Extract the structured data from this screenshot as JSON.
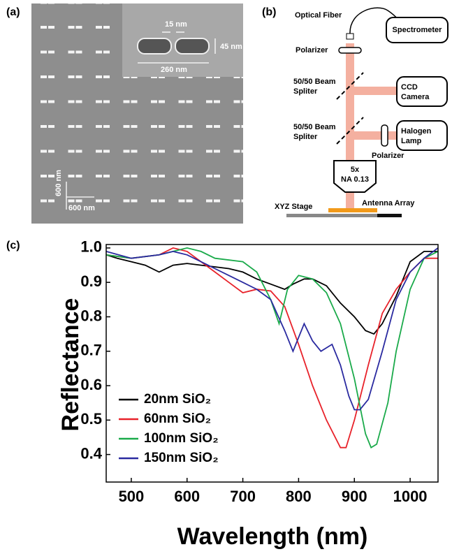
{
  "panel_a": {
    "label": "(a)",
    "gap": "15 nm",
    "width": "45 nm",
    "length": "260 nm",
    "pitch_y": "600 nm",
    "pitch_x": "600 nm"
  },
  "panel_b": {
    "label": "(b)",
    "optical_fiber": "Optical Fiber",
    "spectrometer": "Spectrometer",
    "polarizer_top": "Polarizer",
    "splitter_1": [
      "50/50 Beam",
      "Spliter"
    ],
    "ccd": [
      "CCD",
      "Camera"
    ],
    "splitter_2": [
      "50/50 Beam",
      "Spliter"
    ],
    "lamp": [
      "Halogen",
      "Lamp"
    ],
    "polarizer_side": "Polarizer",
    "objective": [
      "5x",
      "NA 0.13"
    ],
    "stage": "XYZ Stage",
    "sample": "Antenna Array"
  },
  "panel_c": {
    "label": "(c)"
  },
  "chart_data": {
    "type": "line",
    "xlabel": "Wavelength (nm)",
    "ylabel": "Reflectance",
    "xlim": [
      455,
      1050
    ],
    "ylim": [
      0.32,
      1.01
    ],
    "xticks": [
      500,
      600,
      700,
      800,
      900,
      1000
    ],
    "yticks": [
      0.4,
      0.5,
      0.6,
      0.7,
      0.8,
      0.9,
      {
        "value": 1,
        "label": "1.0"
      }
    ],
    "series": [
      {
        "name": "20nm SiO₂",
        "color": "#000000",
        "x": [
          455,
          475,
          500,
          525,
          550,
          575,
          600,
          625,
          650,
          675,
          700,
          725,
          750,
          775,
          790,
          810,
          825,
          850,
          875,
          900,
          920,
          935,
          950,
          975,
          1000,
          1025,
          1050
        ],
        "values": [
          0.98,
          0.97,
          0.96,
          0.95,
          0.93,
          0.95,
          0.955,
          0.95,
          0.945,
          0.94,
          0.93,
          0.91,
          0.895,
          0.88,
          0.895,
          0.91,
          0.91,
          0.89,
          0.84,
          0.8,
          0.76,
          0.75,
          0.78,
          0.86,
          0.96,
          0.99,
          0.99
        ]
      },
      {
        "name": "60nm SiO₂",
        "color": "#e8222a",
        "x": [
          455,
          500,
          550,
          575,
          600,
          625,
          650,
          675,
          700,
          725,
          750,
          775,
          800,
          825,
          850,
          875,
          885,
          900,
          925,
          950,
          975,
          1000,
          1025,
          1050
        ],
        "values": [
          0.98,
          0.97,
          0.98,
          1.0,
          0.99,
          0.96,
          0.93,
          0.9,
          0.87,
          0.88,
          0.875,
          0.83,
          0.72,
          0.6,
          0.5,
          0.42,
          0.42,
          0.5,
          0.66,
          0.81,
          0.88,
          0.93,
          0.97,
          0.97
        ]
      },
      {
        "name": "100nm SiO₂",
        "color": "#1aaa4a",
        "x": [
          455,
          500,
          550,
          600,
          625,
          650,
          700,
          725,
          750,
          765,
          780,
          800,
          825,
          850,
          875,
          900,
          920,
          930,
          940,
          960,
          975,
          1000,
          1025,
          1050
        ],
        "values": [
          0.98,
          0.97,
          0.98,
          1.0,
          0.99,
          0.97,
          0.96,
          0.93,
          0.85,
          0.78,
          0.88,
          0.92,
          0.91,
          0.87,
          0.78,
          0.62,
          0.46,
          0.42,
          0.43,
          0.55,
          0.7,
          0.88,
          0.97,
          0.99
        ]
      },
      {
        "name": "150nm SiO₂",
        "color": "#2a2aa0",
        "x": [
          455,
          500,
          550,
          575,
          600,
          625,
          650,
          675,
          700,
          725,
          750,
          775,
          790,
          810,
          825,
          840,
          860,
          875,
          890,
          900,
          910,
          925,
          950,
          975,
          1000,
          1025,
          1050
        ],
        "values": [
          0.99,
          0.97,
          0.98,
          0.99,
          0.98,
          0.96,
          0.94,
          0.92,
          0.9,
          0.88,
          0.85,
          0.76,
          0.7,
          0.78,
          0.73,
          0.7,
          0.72,
          0.66,
          0.57,
          0.53,
          0.53,
          0.56,
          0.7,
          0.85,
          0.93,
          0.97,
          1.0
        ]
      }
    ]
  }
}
